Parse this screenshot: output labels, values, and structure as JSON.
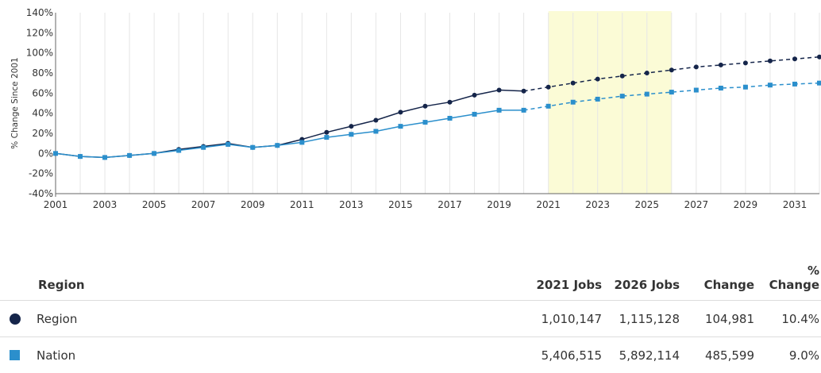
{
  "chart_data": {
    "type": "line",
    "ylabel": "% Change Since 2001",
    "xlabel": "",
    "title": "",
    "ylim": [
      -40,
      140
    ],
    "y_ticks": [
      -40,
      -20,
      0,
      20,
      40,
      60,
      80,
      100,
      120,
      140
    ],
    "y_tick_labels": [
      "-40%",
      "-20%",
      "0%",
      "20%",
      "40%",
      "60%",
      "80%",
      "100%",
      "120%",
      "140%"
    ],
    "xlim": [
      2001,
      2032
    ],
    "x_ticks": [
      2001,
      2003,
      2005,
      2007,
      2009,
      2011,
      2013,
      2015,
      2017,
      2019,
      2021,
      2023,
      2025,
      2027,
      2029,
      2031
    ],
    "x_tick_labels": [
      "2001",
      "2003",
      "2005",
      "2007",
      "2009",
      "2011",
      "2013",
      "2015",
      "2017",
      "2019",
      "2021",
      "2023",
      "2025",
      "2027",
      "2029",
      "2031"
    ],
    "grid": "vertical",
    "highlight_range": [
      2021,
      2026
    ],
    "highlight_color": "#fbfbd6",
    "series": [
      {
        "name": "Region",
        "color": "#15254a",
        "marker": "circle",
        "x": [
          2001,
          2002,
          2003,
          2004,
          2005,
          2006,
          2007,
          2008,
          2009,
          2010,
          2011,
          2012,
          2013,
          2014,
          2015,
          2016,
          2017,
          2018,
          2019,
          2020,
          2021,
          2022,
          2023,
          2024,
          2025,
          2026,
          2027,
          2028,
          2029,
          2030,
          2031,
          2032
        ],
        "values": [
          0,
          -3,
          -4,
          -2,
          0,
          4,
          7,
          10,
          6,
          8,
          14,
          21,
          27,
          33,
          41,
          47,
          51,
          58,
          63,
          62,
          66,
          70,
          74,
          77,
          80,
          83,
          86,
          88,
          90,
          92,
          94,
          96
        ]
      },
      {
        "name": "Nation",
        "color": "#2b8fcc",
        "marker": "square",
        "x": [
          2001,
          2002,
          2003,
          2004,
          2005,
          2006,
          2007,
          2008,
          2009,
          2010,
          2011,
          2012,
          2013,
          2014,
          2015,
          2016,
          2017,
          2018,
          2019,
          2020,
          2021,
          2022,
          2023,
          2024,
          2025,
          2026,
          2027,
          2028,
          2029,
          2030,
          2031,
          2032
        ],
        "values": [
          0,
          -3,
          -4,
          -2,
          0,
          3,
          6,
          9,
          6,
          8,
          11,
          16,
          19,
          22,
          27,
          31,
          35,
          39,
          43,
          43,
          47,
          51,
          54,
          57,
          59,
          61,
          63,
          65,
          66,
          68,
          69,
          70
        ]
      }
    ],
    "projection_start": 2020
  },
  "table": {
    "headers": {
      "region": "Region",
      "jobs2021": "2021 Jobs",
      "jobs2026": "2026 Jobs",
      "change": "Change",
      "pct_line1": "%",
      "pct_line2": "Change"
    },
    "rows": [
      {
        "name": "Region",
        "jobs2021": "1,010,147",
        "jobs2026": "1,115,128",
        "change": "104,981",
        "pct": "10.4%",
        "marker": "circle",
        "color": "#15254a"
      },
      {
        "name": "Nation",
        "jobs2021": "5,406,515",
        "jobs2026": "5,892,114",
        "change": "485,599",
        "pct": "9.0%",
        "marker": "square",
        "color": "#2b8fcc"
      }
    ]
  }
}
